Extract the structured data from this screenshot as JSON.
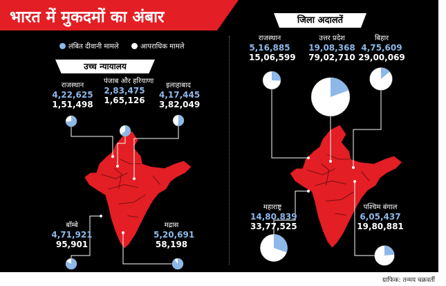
{
  "title": "भारत में मुकदमों का अंबार",
  "legend": {
    "civil": "लंबित दीवानी मामले",
    "criminal": "आपराधिक मामले",
    "civil_color": "#8db8e8",
    "criminal_color": "#ffffff"
  },
  "colors": {
    "background": "#000000",
    "accent": "#e31e24",
    "map": "#e31e24",
    "civil": "#8db8e8",
    "criminal": "#ffffff"
  },
  "sections": {
    "high_courts": "उच्च न्यायालय",
    "district_courts": "जिला अदालतें"
  },
  "credit": "ग्राफिक: तन्मय चक्रवर्ती",
  "chart_data": [
    {
      "type": "pie",
      "title": "उच्च न्यायालय",
      "series_labels": [
        "लंबित दीवानी मामले",
        "आपराधिक मामले"
      ],
      "items": [
        {
          "name": "राजस्थान",
          "civil": 422625,
          "criminal": 151498
        },
        {
          "name": "पंजाब और हरियाणा",
          "civil": 283475,
          "criminal": 165126
        },
        {
          "name": "इलाहाबाद",
          "civil": 417445,
          "criminal": 382049
        },
        {
          "name": "बॉम्बे",
          "civil": 471921,
          "criminal": 95901
        },
        {
          "name": "मद्रास",
          "civil": 520691,
          "criminal": 58198
        }
      ]
    },
    {
      "type": "pie",
      "title": "जिला अदालतें",
      "series_labels": [
        "लंबित दीवानी मामले",
        "आपराधिक मामले"
      ],
      "items": [
        {
          "name": "राजस्थान",
          "civil": 516885,
          "criminal": 1506599
        },
        {
          "name": "उत्तर प्रदेश",
          "civil": 1908368,
          "criminal": 7902710
        },
        {
          "name": "बिहार",
          "civil": 475609,
          "criminal": 2900069
        },
        {
          "name": "महाराष्ट्र",
          "civil": 1480839,
          "criminal": 3377525
        },
        {
          "name": "पश्चिम बंगाल",
          "civil": 605437,
          "criminal": 1980881
        }
      ]
    }
  ]
}
